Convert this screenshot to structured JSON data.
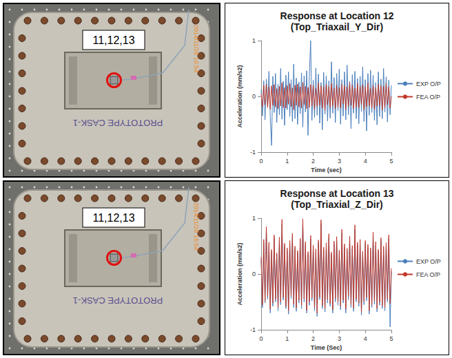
{
  "photos": [
    {
      "label": "11,12,13",
      "stamp": "2014/11/26 16:54",
      "writing": "PROTOTYPE CASK-1"
    },
    {
      "label": "11,12,13",
      "stamp": "2014/11/26 16:54",
      "writing": "PROTOTYPE CASK-1"
    }
  ],
  "chart_data": [
    {
      "type": "line",
      "title": "Response at Location 12",
      "subtitle": "(Top_Triaxail_Y_Dir)",
      "x_label": "Time (sec)",
      "y_label": "Acceleration (mm/s2)",
      "x": [
        0,
        0.05,
        0.1,
        0.15,
        0.2,
        0.25,
        0.3,
        0.35,
        0.4,
        0.45,
        0.5,
        0.55,
        0.6,
        0.65,
        0.7,
        0.75,
        0.8,
        0.85,
        0.9,
        0.95,
        1,
        1.05,
        1.1,
        1.15,
        1.2,
        1.25,
        1.3,
        1.35,
        1.4,
        1.45,
        1.5,
        1.55,
        1.6,
        1.65,
        1.7,
        1.75,
        1.8,
        1.85,
        1.9,
        1.95,
        2,
        2.05,
        2.1,
        2.15,
        2.2,
        2.25,
        2.3,
        2.35,
        2.4,
        2.45,
        2.5,
        2.55,
        2.6,
        2.65,
        2.7,
        2.75,
        2.8,
        2.85,
        2.9,
        2.95,
        3,
        3.05,
        3.1,
        3.15,
        3.2,
        3.25,
        3.3,
        3.35,
        3.4,
        3.45,
        3.5,
        3.55,
        3.6,
        3.65,
        3.7,
        3.75,
        3.8,
        3.85,
        3.9,
        3.95,
        4,
        4.05,
        4.1,
        4.15,
        4.2,
        4.25,
        4.3,
        4.35,
        4.4,
        4.45,
        4.5,
        4.55,
        4.6,
        4.65,
        4.7,
        4.75,
        4.8,
        4.85,
        4.9,
        4.95,
        5
      ],
      "series": [
        {
          "name": "EXP O/P",
          "color": "#4a7ebb",
          "values": [
            0.12,
            -0.35,
            0.28,
            -0.42,
            0.31,
            -0.18,
            0.45,
            -0.38,
            -0.88,
            0.36,
            -0.29,
            0.41,
            -0.47,
            0.22,
            -0.33,
            0.5,
            -0.41,
            0.27,
            -0.52,
            0.38,
            -0.24,
            0.44,
            -0.36,
            0.3,
            -0.45,
            0.58,
            -0.4,
            0.33,
            -0.5,
            0.26,
            -0.31,
            0.42,
            -0.55,
            0.37,
            -0.28,
            0.46,
            -0.7,
            0.35,
            1.0,
            -0.43,
            0.29,
            -0.38,
            0.51,
            -0.34,
            0.4,
            -0.48,
            0.25,
            -0.6,
            0.43,
            -0.32,
            0.37,
            -0.44,
            0.28,
            -0.39,
            0.62,
            -0.3,
            0.34,
            -0.47,
            0.41,
            -0.26,
            0.49,
            -0.5,
            0.3,
            -0.35,
            0.44,
            -0.42,
            0.56,
            -0.33,
            0.27,
            -0.58,
            0.39,
            -0.3,
            0.45,
            -0.4,
            0.32,
            -0.49,
            0.36,
            -0.27,
            0.53,
            -0.45,
            0.3,
            -0.62,
            0.41,
            -0.34,
            0.47,
            -0.29,
            0.38,
            -0.43,
            0.25,
            -0.51,
            0.44,
            -0.36,
            0.31,
            -0.4,
            0.5,
            -0.28,
            0.35,
            -0.46,
            0.29,
            -0.33,
            0.2
          ]
        },
        {
          "name": "FEA O/P",
          "color": "#c0392b",
          "values": [
            0.05,
            -0.18,
            0.2,
            -0.15,
            0.22,
            -0.2,
            0.17,
            -0.23,
            0.19,
            -0.16,
            0.21,
            -0.19,
            0.14,
            -0.22,
            0.18,
            -0.17,
            0.24,
            -0.2,
            0.16,
            -0.21,
            0.19,
            -0.14,
            0.23,
            -0.18,
            0.15,
            -0.24,
            0.2,
            -0.16,
            0.22,
            -0.19,
            0.17,
            -0.21,
            0.25,
            -0.15,
            0.18,
            -0.22,
            0.16,
            -0.2,
            0.21,
            -0.17,
            0.2,
            -0.23,
            0.14,
            -0.18,
            0.24,
            -0.16,
            0.19,
            -0.21,
            0.17,
            -0.25,
            0.22,
            -0.15,
            0.18,
            -0.2,
            0.23,
            -0.17,
            0.15,
            -0.22,
            0.2,
            -0.19,
            0.16,
            -0.21,
            0.22,
            -0.14,
            0.19,
            -0.23,
            0.17,
            -0.18,
            0.25,
            -0.16,
            0.2,
            -0.22,
            0.15,
            -0.19,
            0.23,
            -0.2,
            0.18,
            -0.15,
            0.21,
            -0.24,
            0.17,
            -0.19,
            0.24,
            -0.17,
            0.14,
            -0.21,
            0.2,
            -0.23,
            0.16,
            -0.18,
            0.22,
            -0.16,
            0.19,
            -0.25,
            0.18,
            -0.2,
            0.23,
            -0.15,
            0.17,
            -0.21,
            0.0
          ]
        }
      ],
      "xlim": [
        0,
        5
      ],
      "xticks": [
        0,
        1,
        2,
        3,
        4,
        5
      ],
      "ylim": [
        -1,
        1
      ],
      "yticks": [
        -1,
        0,
        1
      ],
      "grid": false,
      "legend": "right"
    },
    {
      "type": "line",
      "title": "Response at Location 13",
      "subtitle": "(Top_Triaxial_Z_Dir)",
      "x_label": "Time (Sec)",
      "y_label": "Acceleration (mm/s2)",
      "x": [
        0,
        0.05,
        0.1,
        0.15,
        0.2,
        0.25,
        0.3,
        0.35,
        0.4,
        0.45,
        0.5,
        0.55,
        0.6,
        0.65,
        0.7,
        0.75,
        0.8,
        0.85,
        0.9,
        0.95,
        1,
        1.05,
        1.1,
        1.15,
        1.2,
        1.25,
        1.3,
        1.35,
        1.4,
        1.45,
        1.5,
        1.55,
        1.6,
        1.65,
        1.7,
        1.75,
        1.8,
        1.85,
        1.9,
        1.95,
        2,
        2.05,
        2.1,
        2.15,
        2.2,
        2.25,
        2.3,
        2.35,
        2.4,
        2.45,
        2.5,
        2.55,
        2.6,
        2.65,
        2.7,
        2.75,
        2.8,
        2.85,
        2.9,
        2.95,
        3,
        3.05,
        3.1,
        3.15,
        3.2,
        3.25,
        3.3,
        3.35,
        3.4,
        3.45,
        3.5,
        3.55,
        3.6,
        3.65,
        3.7,
        3.75,
        3.8,
        3.85,
        3.9,
        3.95,
        4,
        4.05,
        4.1,
        4.15,
        4.2,
        4.25,
        4.3,
        4.35,
        4.4,
        4.45,
        4.5,
        4.55,
        4.6,
        4.65,
        4.7,
        4.75,
        4.8,
        4.85,
        4.9,
        4.95,
        5
      ],
      "series": [
        {
          "name": "EXP O/P",
          "color": "#4a7ebb",
          "values": [
            0.25,
            -0.6,
            0.55,
            -0.52,
            0.8,
            -0.45,
            0.5,
            -0.7,
            0.4,
            -0.58,
            0.65,
            -0.5,
            0.35,
            -0.66,
            0.6,
            -0.55,
            0.9,
            -0.47,
            0.5,
            -0.62,
            0.42,
            -0.72,
            0.55,
            -0.44,
            0.68,
            -0.6,
            0.45,
            -0.67,
            0.38,
            -0.52,
            0.6,
            -0.62,
            0.92,
            -0.5,
            0.52,
            -0.7,
            0.36,
            -0.56,
            0.63,
            -0.48,
            0.48,
            -0.66,
            0.4,
            -0.76,
            0.56,
            -0.46,
            0.9,
            -0.62,
            0.43,
            -0.68,
            0.5,
            -0.52,
            0.66,
            -0.58,
            0.35,
            -0.7,
            0.54,
            -0.5,
            0.6,
            -0.56,
            0.4,
            -0.64,
            0.74,
            -0.52,
            0.48,
            -0.7,
            0.41,
            -0.46,
            0.62,
            -0.6,
            0.46,
            -0.67,
            0.8,
            -0.5,
            0.52,
            -0.58,
            0.56,
            -0.74,
            0.37,
            -0.55,
            0.55,
            -0.48,
            0.47,
            -0.72,
            0.42,
            -0.6,
            0.7,
            -0.54,
            0.52,
            -0.68,
            0.4,
            -0.56,
            0.6,
            -0.62,
            0.45,
            -0.66,
            0.5,
            -0.5,
            0.64,
            -0.95,
            0.05
          ]
        },
        {
          "name": "FEA O/P",
          "color": "#c0392b",
          "values": [
            0.3,
            -0.55,
            0.62,
            -0.48,
            0.85,
            -0.4,
            0.57,
            -0.63,
            0.44,
            -0.52,
            0.7,
            -0.45,
            0.38,
            -0.6,
            0.66,
            -0.5,
            0.98,
            -0.42,
            0.55,
            -0.58,
            0.47,
            -0.66,
            0.6,
            -0.39,
            0.73,
            -0.54,
            0.5,
            -0.61,
            0.42,
            -0.47,
            0.64,
            -0.56,
            0.99,
            -0.44,
            0.58,
            -0.65,
            0.4,
            -0.5,
            0.69,
            -0.43,
            0.52,
            -0.6,
            0.45,
            -0.7,
            0.61,
            -0.41,
            0.97,
            -0.57,
            0.48,
            -0.62,
            0.56,
            -0.46,
            0.72,
            -0.53,
            0.39,
            -0.64,
            0.59,
            -0.44,
            0.67,
            -0.5,
            0.43,
            -0.58,
            0.8,
            -0.47,
            0.54,
            -0.63,
            0.46,
            -0.4,
            0.68,
            -0.55,
            0.51,
            -0.61,
            0.88,
            -0.45,
            0.57,
            -0.52,
            0.62,
            -0.68,
            0.41,
            -0.49,
            0.6,
            -0.42,
            0.53,
            -0.66,
            0.47,
            -0.55,
            0.75,
            -0.48,
            0.58,
            -0.62,
            0.44,
            -0.5,
            0.65,
            -0.57,
            0.5,
            -0.6,
            0.56,
            -0.45,
            0.7,
            -0.53,
            0.1
          ]
        }
      ],
      "xlim": [
        0,
        5
      ],
      "xticks": [
        0,
        1,
        2,
        3,
        4,
        5
      ],
      "ylim": [
        -1,
        1
      ],
      "yticks": [
        -1,
        0,
        1
      ],
      "grid": false,
      "legend": "right"
    }
  ]
}
